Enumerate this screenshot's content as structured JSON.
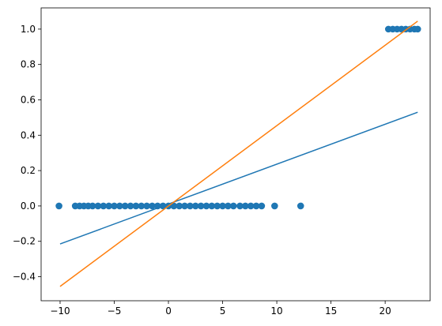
{
  "chart_data": {
    "type": "scatter",
    "xlim": [
      -11.75,
      24.15
    ],
    "ylim": [
      -0.536,
      1.12
    ],
    "xticks": [
      {
        "value": -10,
        "label": "−10"
      },
      {
        "value": -5,
        "label": "−5"
      },
      0,
      5,
      10,
      15,
      20
    ],
    "yticks": [
      {
        "value": -0.4,
        "label": "−0.4"
      },
      {
        "value": -0.2,
        "label": "−0.2"
      },
      {
        "value": 0,
        "label": "0.0"
      },
      {
        "value": 0.2,
        "label": "0.2"
      },
      {
        "value": 0.4,
        "label": "0.4"
      },
      {
        "value": 0.6,
        "label": "0.6"
      },
      {
        "value": 0.8,
        "label": "0.8"
      },
      {
        "value": 1,
        "label": "1.0"
      }
    ],
    "series": [
      {
        "type": "scatter",
        "color": "#1f77b4",
        "x": [
          -10.1,
          -8.6,
          -8.2,
          -7.8,
          -7.4,
          -7,
          -6.5,
          -6,
          -5.5,
          -5,
          -4.5,
          -4,
          -3.5,
          -3,
          -2.5,
          -2,
          -1.5,
          -1,
          -0.5,
          0,
          0.5,
          1,
          1.5,
          2,
          2.5,
          3,
          3.5,
          4,
          4.5,
          5,
          5.5,
          6,
          6.6,
          7.1,
          7.6,
          8.1,
          8.6,
          9.8,
          12.2,
          20.3,
          20.7,
          21.1,
          21.5,
          21.9,
          22.3,
          22.7,
          23
        ],
        "values": [
          0,
          0,
          0,
          0,
          0,
          0,
          0,
          0,
          0,
          0,
          0,
          0,
          0,
          0,
          0,
          0,
          0,
          0,
          0,
          0,
          0,
          0,
          0,
          0,
          0,
          0,
          0,
          0,
          0,
          0,
          0,
          0,
          0,
          0,
          0,
          0,
          0,
          0,
          0,
          1,
          1,
          1,
          1,
          1,
          1,
          1,
          1
        ]
      },
      {
        "type": "line",
        "color": "#1f77b4",
        "x": [
          -10,
          23
        ],
        "values": [
          -0.215,
          0.53
        ]
      },
      {
        "type": "line",
        "color": "#ff7f0e",
        "x": [
          -10,
          23
        ],
        "values": [
          -0.455,
          1.045
        ]
      }
    ]
  }
}
